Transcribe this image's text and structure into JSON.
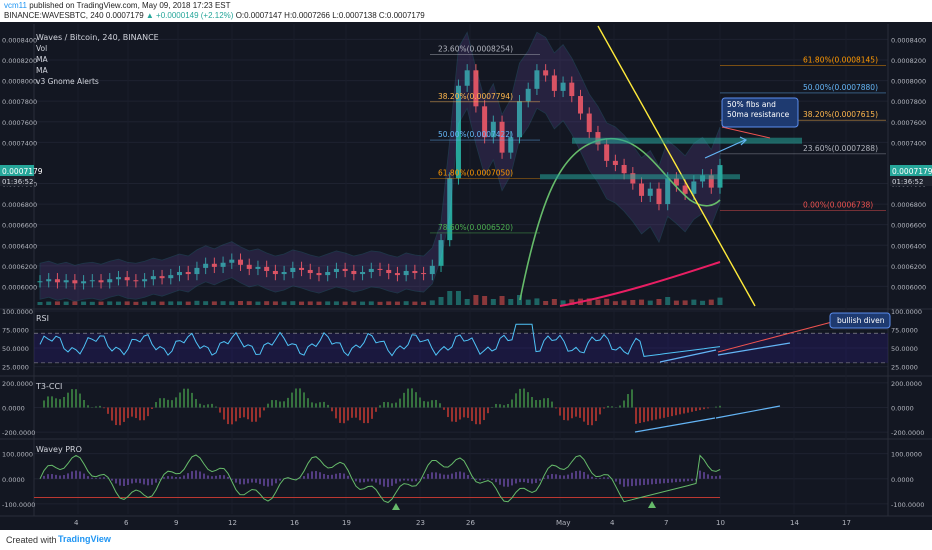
{
  "header": {
    "author": "vcm11",
    "published": "published on TradingView.com, May 09, 2018 17:23 EST",
    "symbol": "BINANCE:WAVESBTC, 240",
    "last": "0.0007179",
    "change": "+0.0000149 (+2.12%)",
    "ohlc": "O:0.0007147 H:0.0007266 L:0.0007138 C:0.0007179"
  },
  "footer": {
    "created": "Created with",
    "brand": "TradingView"
  },
  "legend": {
    "title": "Waves / Bitcoin, 240, BINANCE",
    "items": [
      "Vol",
      "MA",
      "MA",
      "v3 Gnome Alerts"
    ]
  },
  "colors": {
    "background": "#131722",
    "bull": "#26a69a",
    "bear": "#ef5350",
    "trendline": "#ffeb3b",
    "rsi": "#4fc3f7",
    "cci_up": "#4caf50",
    "cci_down": "#f44336",
    "ma_pink": "#e91e63",
    "fib_zone": "#26a69a"
  },
  "chart_data": [
    {
      "type": "line",
      "name": "price",
      "ylim": [
        0.00058,
        0.000855
      ],
      "y_ticks": [
        "0.0008400",
        "0.0008200",
        "0.0008000",
        "0.0007800",
        "0.0007600",
        "0.0007400",
        "0.0007000",
        "0.0006800",
        "0.0006600",
        "0.0006400",
        "0.0006200",
        "0.0006000"
      ],
      "y_tick_values": [
        0.00084,
        0.00082,
        0.0008,
        0.00078,
        0.00076,
        0.00074,
        0.0007,
        0.00068,
        0.00066,
        0.00064,
        0.00062,
        0.0006
      ],
      "x_labels": [
        "4",
        "6",
        "9",
        "12",
        "16",
        "19",
        "23",
        "26",
        "May",
        "4",
        "7",
        "10",
        "14",
        "17"
      ],
      "last_price_tag": "0.0007179",
      "countdown": "01:36:52",
      "fib_left": [
        {
          "label": "23.60%(0.0008254)",
          "value": 0.0008254,
          "color": "#b2b5be"
        },
        {
          "label": "38.20%(0.0007794)",
          "value": 0.0007794,
          "color": "#ffb74d"
        },
        {
          "label": "50.00%(0.0007422)",
          "value": 0.0007422,
          "color": "#64b5f6"
        },
        {
          "label": "61.80%(0.0007050)",
          "value": 0.000705,
          "color": "#ff9800"
        },
        {
          "label": "78.60%(0.0006520)",
          "value": 0.000652,
          "color": "#4caf50"
        }
      ],
      "fib_right": [
        {
          "label": "61.80%(0.0008145)",
          "value": 0.0008145,
          "color": "#ff9800"
        },
        {
          "label": "50.00%(0.0007880)",
          "value": 0.000788,
          "color": "#64b5f6"
        },
        {
          "label": "38.20%(0.0007615)",
          "value": 0.0007615,
          "color": "#ffb74d"
        },
        {
          "label": "23.60%(0.0007288)",
          "value": 0.0007288,
          "color": "#b2b5be"
        },
        {
          "label": "0.00%(0.0006738)",
          "value": 0.0006738,
          "color": "#ef5350"
        }
      ],
      "annotation": "50% fibs and 50ma resistance",
      "close_series": [
        0.000605,
        0.000607,
        0.000604,
        0.000606,
        0.000603,
        0.000605,
        0.000606,
        0.000604,
        0.000607,
        0.000609,
        0.000606,
        0.000605,
        0.000607,
        0.00061,
        0.000608,
        0.000611,
        0.000614,
        0.000612,
        0.000618,
        0.000622,
        0.000619,
        0.000623,
        0.000626,
        0.000621,
        0.000617,
        0.000619,
        0.000615,
        0.000612,
        0.000614,
        0.000618,
        0.000616,
        0.000613,
        0.000611,
        0.000614,
        0.000617,
        0.000615,
        0.000612,
        0.000614,
        0.000617,
        0.000616,
        0.000613,
        0.000611,
        0.000615,
        0.000613,
        0.000612,
        0.00062,
        0.000645,
        0.000705,
        0.000795,
        0.00081,
        0.000775,
        0.000745,
        0.00076,
        0.00073,
        0.000745,
        0.00078,
        0.000792,
        0.00081,
        0.000805,
        0.00079,
        0.000798,
        0.000785,
        0.000768,
        0.00075,
        0.000738,
        0.000722,
        0.000718,
        0.00071,
        0.0007,
        0.000688,
        0.000695,
        0.00068,
        0.000705,
        0.000698,
        0.00069,
        0.000702,
        0.000708,
        0.000696,
        0.0007179
      ]
    },
    {
      "type": "line",
      "name": "RSI",
      "title": "RSI",
      "ylim": [
        15,
        100
      ],
      "y_ticks": [
        "100.0000",
        "75.0000",
        "50.0000",
        "25.0000"
      ],
      "y_tick_values": [
        100,
        75,
        50,
        25
      ],
      "callout": "bullish diven"
    },
    {
      "type": "bar",
      "name": "T3-CCI",
      "title": "T3-CCI",
      "ylim": [
        -240,
        240
      ],
      "y_ticks": [
        "200.0000",
        "0.0000",
        "-200.0000"
      ],
      "y_tick_values": [
        200,
        0,
        -200
      ]
    },
    {
      "type": "line",
      "name": "Wavey PRO",
      "title": "Wavey PRO",
      "ylim": [
        -140,
        150
      ],
      "y_ticks": [
        "100.0000",
        "0.0000",
        "-100.0000"
      ],
      "y_tick_values": [
        100,
        0,
        -100
      ]
    }
  ]
}
